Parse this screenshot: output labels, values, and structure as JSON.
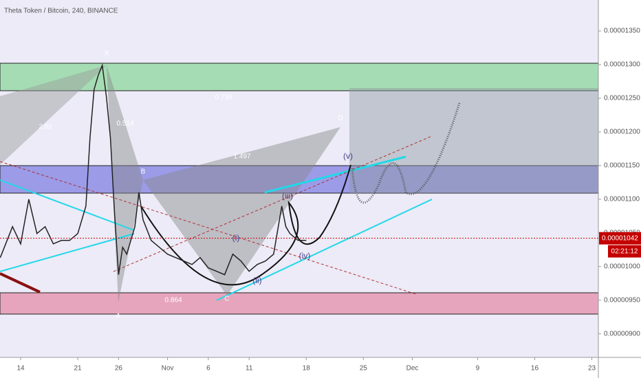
{
  "title": "Theta Token / Bitcoin, 240, BINANCE",
  "chart_data": {
    "type": "line",
    "color": "#222",
    "x": [
      11.5,
      12,
      13,
      14,
      15,
      16,
      17,
      18,
      19,
      20,
      21,
      22,
      22.5,
      23,
      23.5,
      24,
      24.5,
      25,
      25.5,
      26,
      26.5,
      27,
      28,
      28.5,
      29,
      30,
      31,
      32,
      33,
      34,
      35,
      36,
      37,
      38,
      39,
      40,
      41,
      42,
      43,
      44,
      45,
      46,
      46.5,
      47,
      48,
      49
    ],
    "values": [
      1.0133e-05,
      1.0286e-05,
      1.0592e-05,
      1.0337e-05,
      1.1e-05,
      1.049e-05,
      1.0592e-05,
      1.0337e-05,
      1.0388e-05,
      1.0388e-05,
      1.049e-05,
      1.0898e-05,
      1.1918e-05,
      1.2633e-05,
      1.2837e-05,
      1.299e-05,
      1.2531e-05,
      1.1918e-05,
      1.0796e-05,
      9.878e-06,
      1.0286e-05,
      1.0184e-05,
      1.0592e-05,
      1.1102e-05,
      1.0694e-05,
      1.0388e-05,
      1.0286e-05,
      1.0184e-05,
      1.0133e-05,
      1.0082e-05,
      1.0031e-05,
      1.0133e-05,
      9.98e-06,
      9.929e-06,
      9.878e-06,
      1.0184e-05,
      1.0082e-05,
      9.929e-06,
      1.0031e-05,
      1.0082e-05,
      1.0184e-05,
      1.0898e-05,
      1.0592e-05,
      1.049e-05,
      1.0388e-05,
      1.0388e-05
    ],
    "xlim": [
      11.47,
      84.8
    ],
    "ylim": [
      8.65e-06,
      1.396e-05
    ],
    "xticks": [
      14,
      21,
      26,
      {
        "value": 32,
        "label": "Nov"
      },
      {
        "value": 37,
        "label": "6"
      },
      {
        "value": 42,
        "label": "11"
      },
      {
        "value": 49,
        "label": "18"
      },
      {
        "value": 56,
        "label": "25"
      },
      {
        "value": 62,
        "label": "Dec"
      },
      {
        "value": 70,
        "label": "9"
      },
      {
        "value": 77,
        "label": "16"
      },
      {
        "value": 84,
        "label": "23"
      }
    ],
    "yticks": [
      {
        "value": 1.35e-05,
        "label": "0.00001350"
      },
      {
        "value": 1.3e-05,
        "label": "0.00001300"
      },
      {
        "value": 1.25e-05,
        "label": "0.00001250"
      },
      {
        "value": 1.2e-05,
        "label": "0.00001200"
      },
      {
        "value": 1.15e-05,
        "label": "0.00001150"
      },
      {
        "value": 1.1e-05,
        "label": "0.00001100"
      },
      {
        "value": 1.05e-05,
        "label": "0.00001050"
      },
      {
        "value": 1e-05,
        "label": "0.00001000"
      },
      {
        "value": 9.5e-06,
        "label": "0.00000950"
      },
      {
        "value": 9e-06,
        "label": "0.00000900"
      }
    ],
    "last_price": {
      "value": 1.042e-05,
      "label": "0.00001042"
    },
    "countdown": "02:21:12",
    "annotations": [
      "X",
      "A",
      "B",
      "C",
      "D",
      "0.735",
      "0.514",
      "2.02",
      "1.497",
      "0.864",
      "(i)",
      "(ii)",
      "(iii)",
      "(iv)",
      "(v)"
    ]
  }
}
